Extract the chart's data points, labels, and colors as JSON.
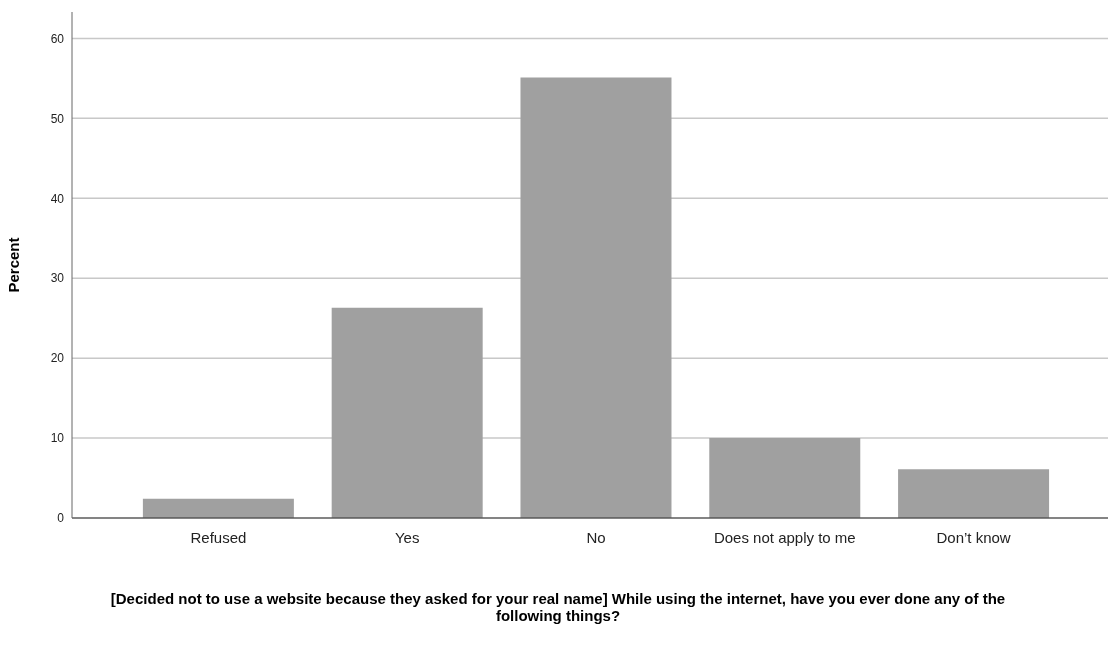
{
  "chart_data": {
    "type": "bar",
    "xlabel": "[Decided not to use a website because they asked for your real name] While using the internet, have you ever done any of the following things?",
    "ylabel": "Percent",
    "categories": [
      "Refused",
      "Yes",
      "No",
      "Does not apply to me",
      "Don’t know"
    ],
    "values": [
      2.4,
      26.3,
      55.1,
      10.0,
      6.1
    ],
    "color": "#a0a0a0",
    "ylim": [
      0,
      63.3
    ],
    "yticks": [
      0,
      10,
      20,
      30,
      40,
      50,
      60
    ],
    "grid": "y"
  }
}
